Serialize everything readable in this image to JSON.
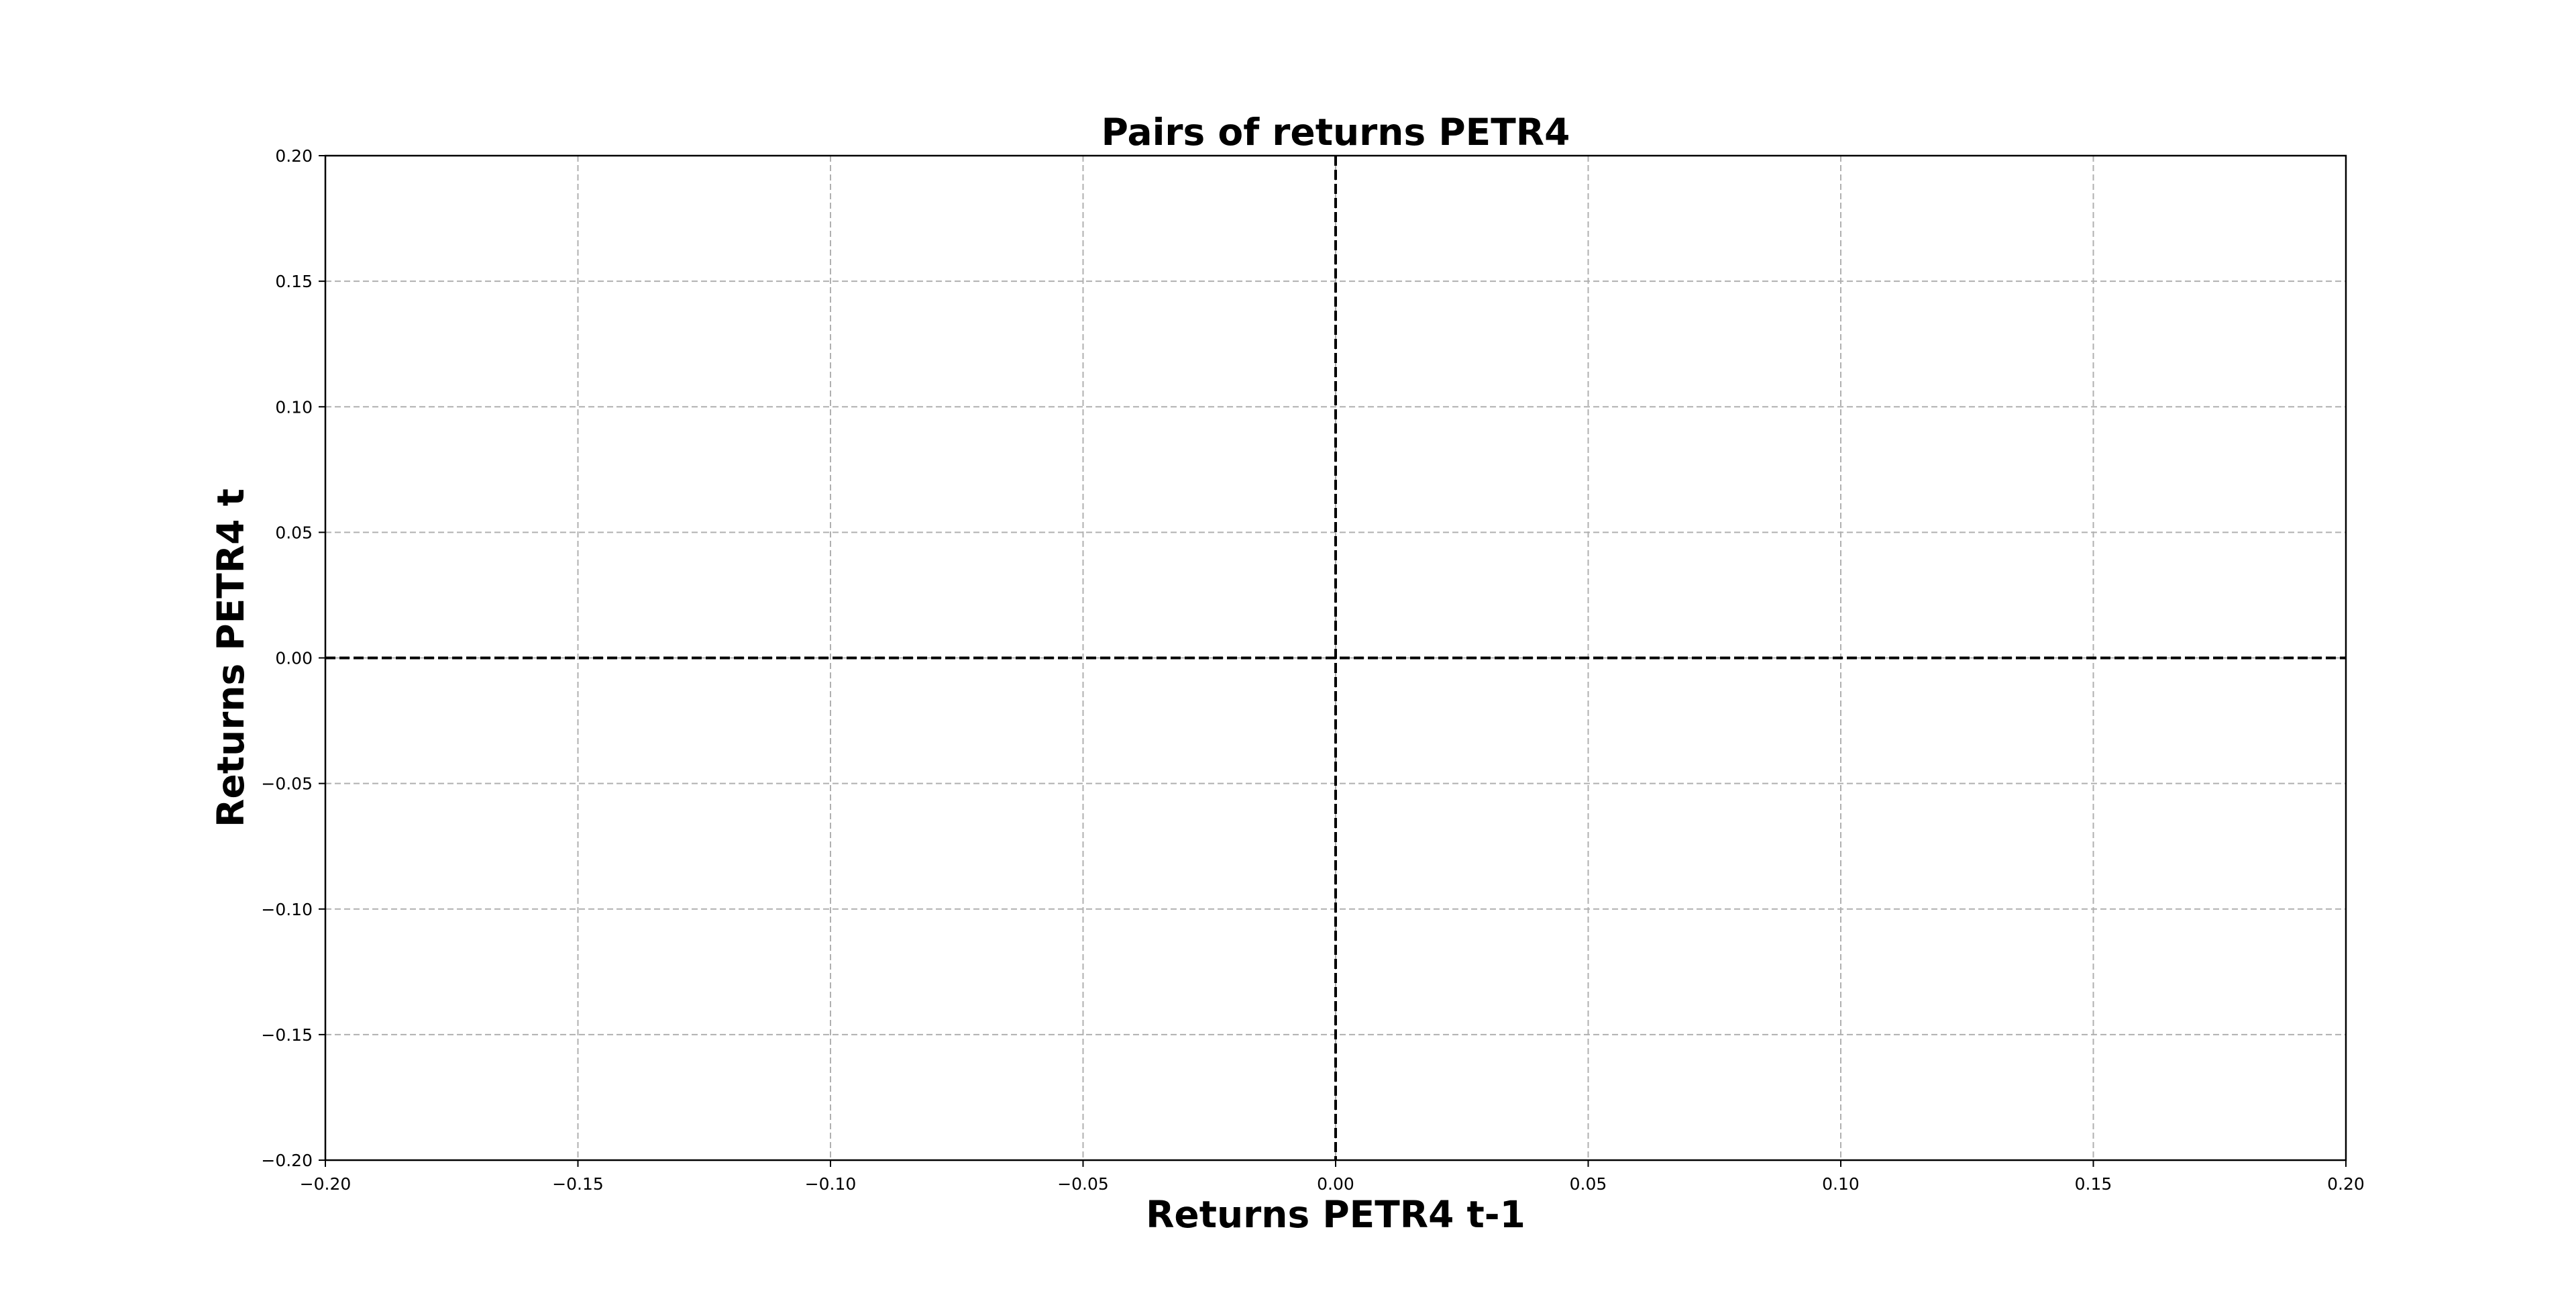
{
  "chart_data": {
    "type": "scatter",
    "title": "Pairs of returns PETR4",
    "xlabel": "Returns PETR4 t-1",
    "ylabel": "Returns PETR4 t",
    "xlim": [
      -0.2,
      0.2
    ],
    "ylim": [
      -0.2,
      0.2
    ],
    "x_ticks": [
      -0.2,
      -0.15,
      -0.1,
      -0.05,
      0.0,
      0.05,
      0.1,
      0.15,
      0.2
    ],
    "y_ticks": [
      -0.2,
      -0.15,
      -0.1,
      -0.05,
      0.0,
      0.05,
      0.1,
      0.15,
      0.2
    ],
    "x_tick_labels": [
      "−0.20",
      "−0.15",
      "−0.10",
      "−0.05",
      "0.00",
      "0.05",
      "0.10",
      "0.15",
      "0.20"
    ],
    "y_tick_labels": [
      "−0.20",
      "−0.15",
      "−0.10",
      "−0.05",
      "0.00",
      "0.05",
      "0.10",
      "0.15",
      "0.20"
    ],
    "grid": true,
    "grid_style": "dashed",
    "reference_lines": [
      {
        "orientation": "horizontal",
        "value": 0.0,
        "style": "dashed"
      },
      {
        "orientation": "vertical",
        "value": 0.0,
        "style": "dashed"
      }
    ],
    "series": [
      {
        "points": []
      }
    ]
  },
  "colors": {
    "grid": "#b0b0b0",
    "axes": "#000000",
    "reference_line": "#000000",
    "point": "#1f77b4",
    "background": "#ffffff"
  }
}
